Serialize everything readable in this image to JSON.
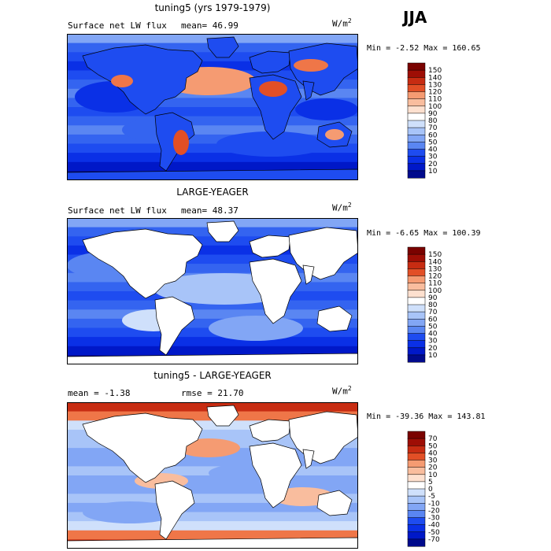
{
  "season": "JJA",
  "units": "W/m",
  "units_sup": "2",
  "colors": {
    "abs_palette": [
      "#000a8c",
      "#0018c8",
      "#0a30e6",
      "#1e4cf0",
      "#3464f0",
      "#5a86f2",
      "#82a6f5",
      "#a8c4f8",
      "#cfe0fb",
      "#ffffff",
      "#fde0cf",
      "#f9bd9e",
      "#f59b72",
      "#ef7648",
      "#e24f26",
      "#c72c12",
      "#9e0e05",
      "#7a0200"
    ],
    "diff_palette": [
      "#000a8c",
      "#0018c8",
      "#0a30e6",
      "#1e4cf0",
      "#3464f0",
      "#5a86f2",
      "#82a6f5",
      "#a8c4f8",
      "#cfe0fb",
      "#ffffff",
      "#fde0cf",
      "#f9bd9e",
      "#f59b72",
      "#ef7648",
      "#e24f26",
      "#c72c12",
      "#9e0e05",
      "#7a0200"
    ]
  },
  "chart_data": [
    {
      "type": "heatmap",
      "title": "tuning5 (yrs 1979-1979)",
      "field_label": "Surface net LW flux",
      "stat_text": "mean=  46.99",
      "minmax_text": "Min =  -2.52 Max = 160.65",
      "min": -2.52,
      "max": 160.65,
      "mean": 46.99,
      "colorbar_levels": [
        150,
        140,
        130,
        120,
        110,
        100,
        90,
        80,
        70,
        60,
        50,
        40,
        30,
        20,
        10
      ],
      "land_masked": false
    },
    {
      "type": "heatmap",
      "title": "LARGE-YEAGER",
      "field_label": "Surface net LW flux",
      "stat_text": "mean=  48.37",
      "minmax_text": "Min =  -6.65 Max = 100.39",
      "min": -6.65,
      "max": 100.39,
      "mean": 48.37,
      "colorbar_levels": [
        150,
        140,
        130,
        120,
        110,
        100,
        90,
        80,
        70,
        60,
        50,
        40,
        30,
        20,
        10
      ],
      "land_masked": true
    },
    {
      "type": "heatmap",
      "title": "tuning5 - LARGE-YEAGER",
      "field_label": "mean =  -1.38",
      "stat_text": "rmse =  21.70",
      "minmax_text": "Min = -39.36 Max = 143.81",
      "min": -39.36,
      "max": 143.81,
      "mean": -1.38,
      "rmse": 21.7,
      "colorbar_levels": [
        70,
        50,
        40,
        30,
        20,
        10,
        5,
        0,
        -5,
        -10,
        -20,
        -30,
        -40,
        -50,
        -70
      ],
      "land_masked": true
    }
  ]
}
